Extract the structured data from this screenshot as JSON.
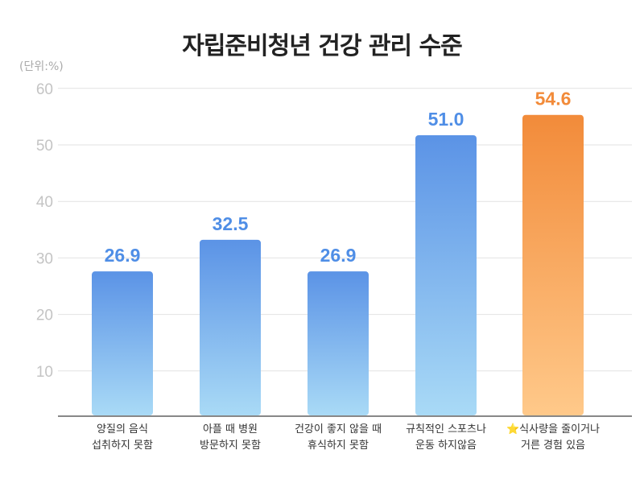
{
  "chart_data": {
    "type": "bar",
    "title": "자립준비청년 건강 관리 수준",
    "unit_label": "(단위:%)",
    "ylim": [
      0,
      60
    ],
    "yticks": [
      10,
      20,
      30,
      40,
      50,
      60
    ],
    "grid": true,
    "categories": [
      "양질의 음식\n섭취하지 못함",
      "아플 때 병원\n방문하지 못함",
      "건강이 좋지 않을 때\n휴식하지 못함",
      "규칙적인 스포츠나\n운동 하지않음",
      "⭐식사량을 줄이거나\n거른 경험 있음"
    ],
    "values": [
      26.9,
      32.5,
      26.9,
      51.0,
      54.6
    ],
    "value_labels": [
      "26.9",
      "32.5",
      "26.9",
      "51.0",
      "54.6"
    ],
    "highlight_index": 4,
    "colors": {
      "blue_top": "#5b93e6",
      "blue_bottom": "#a9daf6",
      "orange_top": "#f28b3a",
      "orange_bottom": "#ffc98a",
      "blue_label": "#4f8ee6",
      "orange_label": "#f28b3a"
    }
  }
}
